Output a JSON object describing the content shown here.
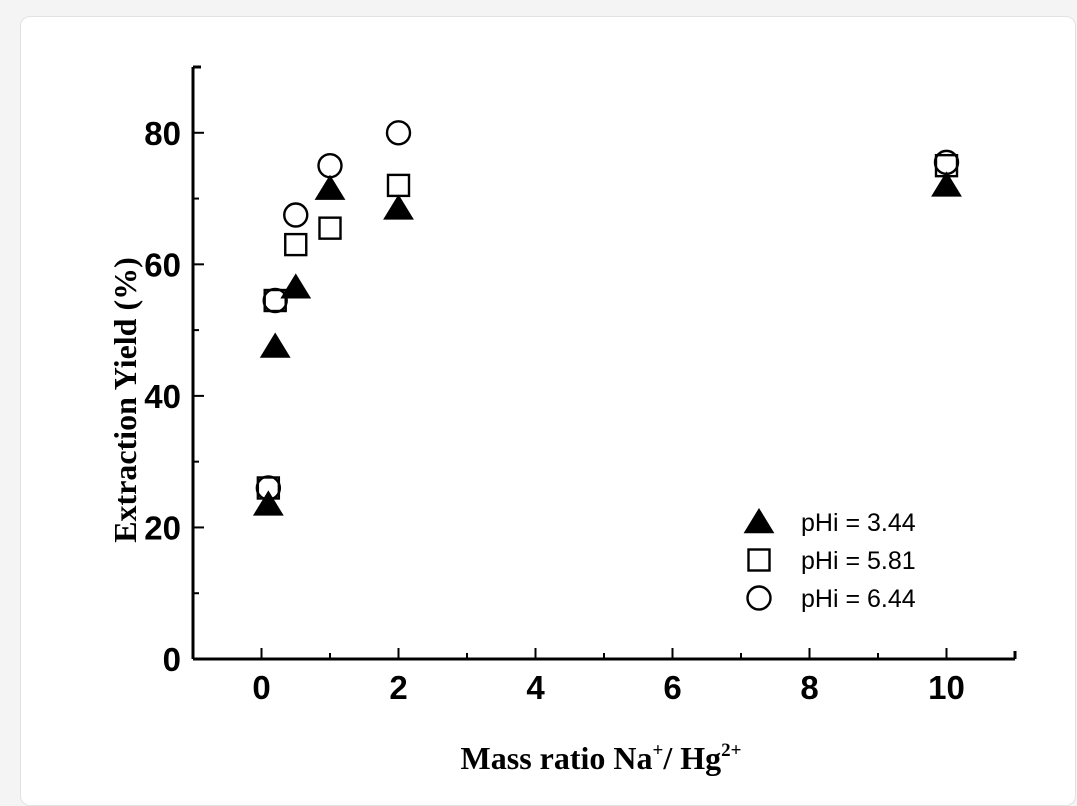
{
  "chart_data": {
    "type": "scatter",
    "title": "",
    "xlabel": {
      "main": "Mass ratio Na",
      "sup1": "+",
      "mid": "/ Hg",
      "sup2": "2+"
    },
    "ylabel": "Extraction Yield (%)",
    "xlim": [
      -1,
      11
    ],
    "ylim": [
      0,
      90
    ],
    "xticks": [
      0,
      2,
      4,
      6,
      8,
      10
    ],
    "xtick_labels": [
      "0",
      "2",
      "4",
      "6",
      "8",
      "10"
    ],
    "yticks": [
      0,
      20,
      40,
      60,
      80
    ],
    "ytick_labels": [
      "0",
      "20",
      "40",
      "60",
      "80"
    ],
    "grid": false,
    "legend_position": "bottom-right",
    "series": [
      {
        "name": "pHi = 3.44",
        "marker": "filled-triangle",
        "color": "#000000",
        "x": [
          0.1,
          0.2,
          0.5,
          1,
          2,
          10
        ],
        "y": [
          23.5,
          47.5,
          56.5,
          71.5,
          68.5,
          72
        ]
      },
      {
        "name": "pHi = 5.81",
        "marker": "open-square",
        "color": "#000000",
        "x": [
          0.1,
          0.2,
          0.5,
          1,
          2,
          10
        ],
        "y": [
          26,
          54.5,
          63,
          65.5,
          72,
          75
        ]
      },
      {
        "name": "pHi = 6.44",
        "marker": "open-circle",
        "color": "#000000",
        "x": [
          0.1,
          0.2,
          0.5,
          1,
          2,
          10
        ],
        "y": [
          26,
          54.5,
          67.5,
          75,
          80,
          75.5
        ]
      }
    ]
  }
}
